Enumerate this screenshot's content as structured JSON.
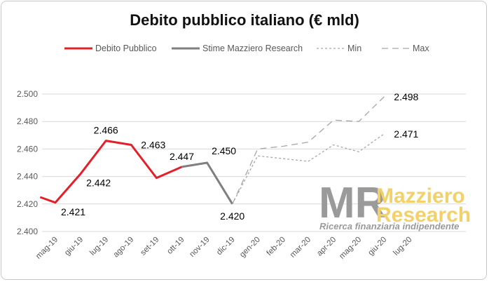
{
  "chart_data": {
    "type": "line",
    "title": "Debito pubblico italiano (€ mld)",
    "xlabel": "",
    "ylabel": "",
    "categories": [
      "mag-19",
      "giu-19",
      "lug-19",
      "ago-19",
      "set-19",
      "ott-19",
      "nov-19",
      "dic-19",
      "gen-20",
      "feb-20",
      "mar-20",
      "apr-20",
      "mag-20",
      "giu-20",
      "lug-20"
    ],
    "ylim": [
      2400,
      2500
    ],
    "yticks": [
      2400,
      2420,
      2440,
      2460,
      2480,
      2500
    ],
    "ytick_labels": [
      "2.400",
      "2.420",
      "2.440",
      "2.460",
      "2.480",
      "2.500"
    ],
    "grid": true,
    "legend_position": "top",
    "series": [
      {
        "name": "Debito Pubblico",
        "color": "#e3202a",
        "style": "solid",
        "points": [
          {
            "x": "apr-19",
            "y": 2425
          },
          {
            "x": "mag-19",
            "y": 2421
          },
          {
            "x": "giu-19",
            "y": 2442
          },
          {
            "x": "lug-19",
            "y": 2466
          },
          {
            "x": "ago-19",
            "y": 2463
          },
          {
            "x": "set-19",
            "y": 2439
          },
          {
            "x": "ott-19",
            "y": 2447
          }
        ]
      },
      {
        "name": "Stime Mazziero Research",
        "color": "#7f7f7f",
        "style": "solid",
        "points": [
          {
            "x": "ott-19",
            "y": 2447
          },
          {
            "x": "nov-19",
            "y": 2450
          },
          {
            "x": "dic-19",
            "y": 2420
          }
        ]
      },
      {
        "name": "Min",
        "color": "#a6a6a6",
        "style": "dotted",
        "points": [
          {
            "x": "dic-19",
            "y": 2420
          },
          {
            "x": "gen-20",
            "y": 2455
          },
          {
            "x": "feb-20",
            "y": 2453
          },
          {
            "x": "mar-20",
            "y": 2451
          },
          {
            "x": "apr-20",
            "y": 2463
          },
          {
            "x": "mag-20",
            "y": 2458
          },
          {
            "x": "giu-20",
            "y": 2471
          }
        ]
      },
      {
        "name": "Max",
        "color": "#a6a6a6",
        "style": "dashed",
        "points": [
          {
            "x": "dic-19",
            "y": 2420
          },
          {
            "x": "gen-20",
            "y": 2460
          },
          {
            "x": "feb-20",
            "y": 2462
          },
          {
            "x": "mar-20",
            "y": 2465
          },
          {
            "x": "apr-20",
            "y": 2481
          },
          {
            "x": "mag-20",
            "y": 2480
          },
          {
            "x": "giu-20",
            "y": 2498
          }
        ]
      }
    ],
    "data_labels": [
      {
        "x": "mag-19",
        "y": 2421,
        "text": "2.421",
        "pos": "below-right"
      },
      {
        "x": "giu-19",
        "y": 2442,
        "text": "2.442",
        "pos": "below-right"
      },
      {
        "x": "lug-19",
        "y": 2466,
        "text": "2.466",
        "pos": "above"
      },
      {
        "x": "ago-19",
        "y": 2463,
        "text": "2.463",
        "pos": "right"
      },
      {
        "x": "ott-19",
        "y": 2447,
        "text": "2.447",
        "pos": "above"
      },
      {
        "x": "nov-19",
        "y": 2450,
        "text": "2.450",
        "pos": "above-right"
      },
      {
        "x": "dic-19",
        "y": 2420,
        "text": "2.420",
        "pos": "below"
      },
      {
        "x": "giu-20",
        "y": 2498,
        "text": "2.498",
        "pos": "right"
      },
      {
        "x": "giu-20",
        "y": 2471,
        "text": "2.471",
        "pos": "right"
      }
    ]
  },
  "watermark": {
    "monogram": "MR",
    "line1": "Mazziero",
    "line2": "Research",
    "tagline": "Ricerca finanziaria indipendente",
    "accent_color": "#f2d16b",
    "gray_color": "#9a9a9a"
  }
}
